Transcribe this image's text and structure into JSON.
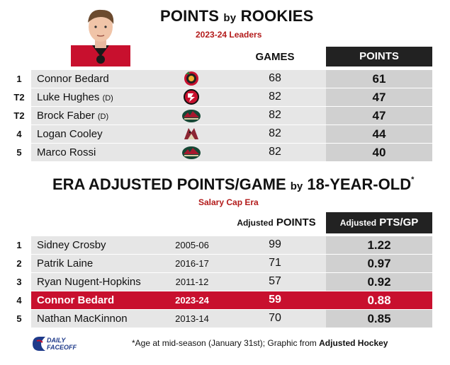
{
  "section1": {
    "title_main": "POINTS",
    "title_by": "by",
    "title_end": "ROOKIES",
    "subtitle": "2023-24 Leaders",
    "col_games": "GAMES",
    "col_points": "POINTS",
    "rows": [
      {
        "rank": "1",
        "name": "Connor Bedard",
        "pos": "",
        "team": "chicago-blackhawks-logo",
        "games": "68",
        "points": "61"
      },
      {
        "rank": "T2",
        "name": "Luke Hughes",
        "pos": "(D)",
        "team": "new-jersey-devils-logo",
        "games": "82",
        "points": "47"
      },
      {
        "rank": "T2",
        "name": "Brock Faber",
        "pos": "(D)",
        "team": "minnesota-wild-logo",
        "games": "82",
        "points": "47"
      },
      {
        "rank": "4",
        "name": "Logan Cooley",
        "pos": "",
        "team": "arizona-coyotes-logo",
        "games": "82",
        "points": "44"
      },
      {
        "rank": "5",
        "name": "Marco Rossi",
        "pos": "",
        "team": "minnesota-wild-logo",
        "games": "82",
        "points": "40"
      }
    ]
  },
  "section2": {
    "title_main": "ERA ADJUSTED POINTS/GAME",
    "title_by": "by",
    "title_end": "18-YEAR-OLD",
    "title_mark": "*",
    "subtitle": "Salary Cap Era",
    "col_points_small": "Adjusted",
    "col_points": "POINTS",
    "col_ptsgp_small": "Adjusted",
    "col_ptsgp": "PTS/GP",
    "rows": [
      {
        "rank": "1",
        "name": "Sidney Crosby",
        "season": "2005-06",
        "points": "99",
        "ptsgp": "1.22"
      },
      {
        "rank": "2",
        "name": "Patrik Laine",
        "season": "2016-17",
        "points": "71",
        "ptsgp": "0.97"
      },
      {
        "rank": "3",
        "name": "Ryan Nugent-Hopkins",
        "season": "2011-12",
        "points": "57",
        "ptsgp": "0.92"
      },
      {
        "rank": "4",
        "name": "Connor Bedard",
        "season": "2023-24",
        "points": "59",
        "ptsgp": "0.88"
      },
      {
        "rank": "5",
        "name": "Nathan MacKinnon",
        "season": "2013-14",
        "points": "70",
        "ptsgp": "0.85"
      }
    ]
  },
  "footer": {
    "note": "*Age at mid-season (January 31st); Graphic from ",
    "source": "Adjusted Hockey",
    "brand_line1": "DAILY",
    "brand_line2": "FACEOFF"
  },
  "colors": {
    "highlight": "#c8102e",
    "subtitle": "#b31b1b",
    "header_box": "#222222"
  }
}
